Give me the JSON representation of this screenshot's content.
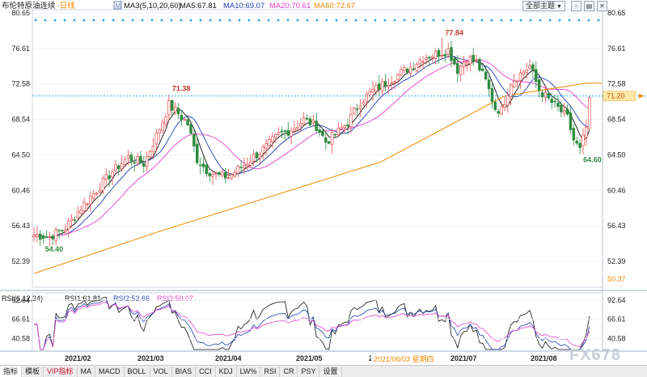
{
  "header": {
    "symbol": "布伦特原油连续",
    "period": "日线",
    "ma_label": "MA3(5,10,20,60)",
    "ma5": "MA5:67.81",
    "ma10": "MA10:69.07",
    "ma20": "MA20:70.61",
    "ma60": "MA60:72.67",
    "theme_button": "全部主题",
    "theme_arrow": "▼"
  },
  "price_axis": {
    "ticks": [
      "80.65",
      "76.61",
      "72.58",
      "68.54",
      "64.50",
      "60.46",
      "56.43",
      "52.39"
    ],
    "bottom_value": "50.37",
    "current_price": "71.20"
  },
  "annotations": {
    "high_1": "71.38",
    "high_2": "77.84",
    "low_1": "54.40",
    "low_2": "64.60"
  },
  "rsi": {
    "label": "RSI(6,12,24)",
    "rsi1": "RSI1:61.81",
    "rsi2": "RSI2:52.66",
    "rsi3": "RSI3:50.07",
    "ticks": [
      "92.64",
      "66.61",
      "40.58"
    ]
  },
  "time_axis": {
    "months": [
      "2021/02",
      "2021/03",
      "2021/04",
      "2021/05",
      "2021/07",
      "2021/08"
    ],
    "cursor_label": "2021/06/03 星期四"
  },
  "toolbar": {
    "items": [
      "指标",
      "模板",
      "VIP指标",
      "MA",
      "MACD",
      "BOLL",
      "VOL",
      "BIAS",
      "CCI",
      "KDJ",
      "LW%",
      "RSI",
      "CR",
      "PSY",
      "设置"
    ]
  },
  "watermark": "FX678",
  "colors": {
    "up": "#e84d4d",
    "down": "#2e8b3d",
    "ma5": "#111111",
    "ma10": "#1f3fb3",
    "ma20": "#e040c8",
    "ma60": "#f08a00",
    "dotted": "#1aa3e8"
  },
  "chart_data": {
    "type": "candlestick",
    "title": "布伦特原油连续 日线",
    "y_range": [
      50.37,
      80.65
    ],
    "anchors": [
      {
        "i": 0,
        "v": 55.4
      },
      {
        "i": 5,
        "v": 55.2
      },
      {
        "i": 10,
        "v": 56.2
      },
      {
        "i": 15,
        "v": 58.5
      },
      {
        "i": 20,
        "v": 60.5
      },
      {
        "i": 25,
        "v": 62.6
      },
      {
        "i": 30,
        "v": 64.2
      },
      {
        "i": 35,
        "v": 63.5
      },
      {
        "i": 40,
        "v": 67.5
      },
      {
        "i": 43,
        "v": 70.2
      },
      {
        "i": 46,
        "v": 69.2
      },
      {
        "i": 49,
        "v": 68.0
      },
      {
        "i": 52,
        "v": 64.0
      },
      {
        "i": 55,
        "v": 62.8
      },
      {
        "i": 58,
        "v": 62.2
      },
      {
        "i": 62,
        "v": 62.0
      },
      {
        "i": 66,
        "v": 63.1
      },
      {
        "i": 70,
        "v": 64.3
      },
      {
        "i": 74,
        "v": 65.4
      },
      {
        "i": 78,
        "v": 66.8
      },
      {
        "i": 82,
        "v": 67.4
      },
      {
        "i": 86,
        "v": 68.5
      },
      {
        "i": 90,
        "v": 67.8
      },
      {
        "i": 93,
        "v": 66.0
      },
      {
        "i": 96,
        "v": 66.8
      },
      {
        "i": 100,
        "v": 68.2
      },
      {
        "i": 104,
        "v": 70.6
      },
      {
        "i": 108,
        "v": 71.8
      },
      {
        "i": 112,
        "v": 72.7
      },
      {
        "i": 116,
        "v": 73.6
      },
      {
        "i": 120,
        "v": 74.5
      },
      {
        "i": 124,
        "v": 75.6
      },
      {
        "i": 128,
        "v": 76.0
      },
      {
        "i": 132,
        "v": 76.4
      },
      {
        "i": 135,
        "v": 74.2
      },
      {
        "i": 138,
        "v": 75.6
      },
      {
        "i": 141,
        "v": 75.0
      },
      {
        "i": 144,
        "v": 72.9
      },
      {
        "i": 147,
        "v": 69.8
      },
      {
        "i": 149,
        "v": 69.6
      },
      {
        "i": 152,
        "v": 72.8
      },
      {
        "i": 155,
        "v": 73.7
      },
      {
        "i": 158,
        "v": 74.6
      },
      {
        "i": 161,
        "v": 71.9
      },
      {
        "i": 164,
        "v": 70.8
      },
      {
        "i": 167,
        "v": 69.8
      },
      {
        "i": 170,
        "v": 68.7
      },
      {
        "i": 172,
        "v": 66.2
      },
      {
        "i": 174,
        "v": 65.0
      },
      {
        "i": 176,
        "v": 67.6
      },
      {
        "i": 177,
        "v": 70.5
      }
    ],
    "fixed_extremes": [
      {
        "i": 43,
        "high": 71.38
      },
      {
        "i": 130,
        "high": 77.84
      },
      {
        "i": 3,
        "low": 54.4
      },
      {
        "i": 174,
        "low": 64.6
      }
    ],
    "rsi_range": [
      26.0,
      100.0
    ],
    "ma5_last": 67.81,
    "ma10_last": 69.07,
    "ma20_last": 70.61,
    "ma60_last": 72.67,
    "rsi1_last": 61.81,
    "rsi2_last": 52.66,
    "rsi3_last": 50.07
  }
}
